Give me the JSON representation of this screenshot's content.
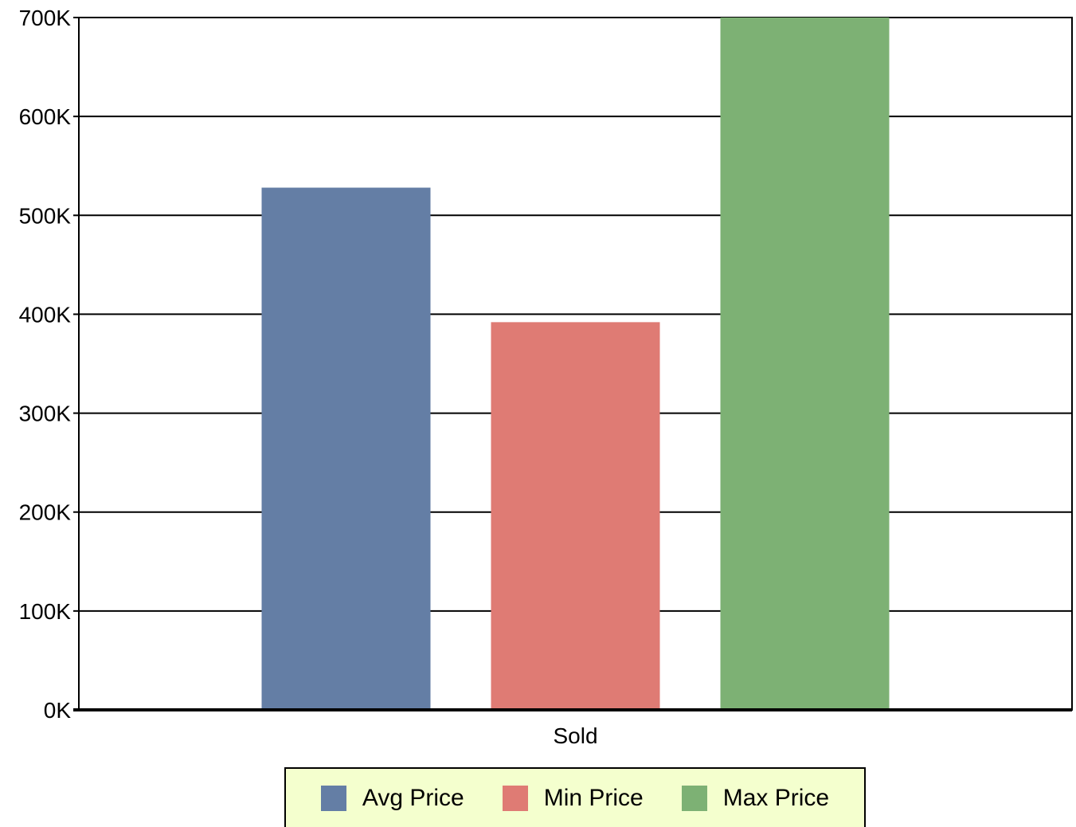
{
  "chart_data": {
    "type": "bar",
    "categories": [
      "Sold"
    ],
    "series": [
      {
        "name": "Avg Price",
        "values": [
          528000
        ],
        "color": "#647ea5"
      },
      {
        "name": "Min Price",
        "values": [
          392000
        ],
        "color": "#df7b74"
      },
      {
        "name": "Max Price",
        "values": [
          700000
        ],
        "color": "#7db174"
      }
    ],
    "title": "",
    "xlabel": "",
    "ylabel": "",
    "ylim": [
      0,
      700000
    ],
    "yticks": [
      0,
      100000,
      200000,
      300000,
      400000,
      500000,
      600000,
      700000
    ],
    "ytick_labels": [
      "0K",
      "100K",
      "200K",
      "300K",
      "400K",
      "500K",
      "600K",
      "700K"
    ],
    "grid": true,
    "legend_position": "bottom"
  }
}
